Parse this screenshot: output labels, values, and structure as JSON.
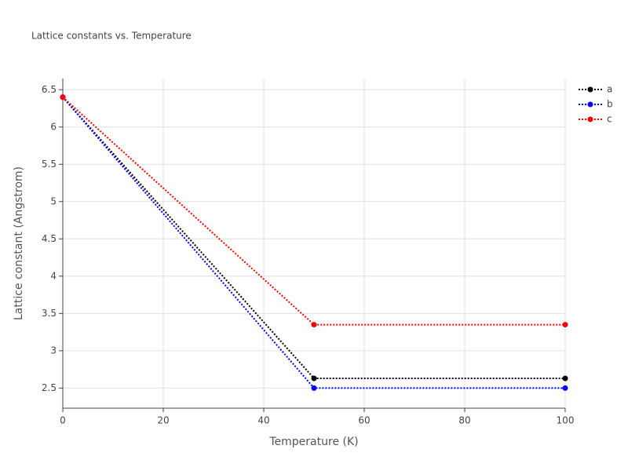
{
  "chart_data": {
    "type": "line",
    "title": "Lattice constants vs. Temperature",
    "x_label": "Temperature (K)",
    "y_label": "Lattice constant (Angstrom)",
    "x": [
      0,
      50,
      100
    ],
    "series": [
      {
        "name": "a",
        "color": "#000000",
        "values": [
          6.4,
          2.63,
          2.63
        ]
      },
      {
        "name": "b",
        "color": "#0000ff",
        "values": [
          6.4,
          2.5,
          2.5
        ]
      },
      {
        "name": "c",
        "color": "#ff0000",
        "values": [
          6.4,
          3.35,
          3.35
        ]
      }
    ],
    "xlim": [
      0,
      100
    ],
    "xticks": [
      0,
      20,
      40,
      60,
      80,
      100
    ],
    "ylim": [
      2.23,
      6.65
    ],
    "yticks": [
      2.5,
      3,
      3.5,
      4,
      4.5,
      5,
      5.5,
      6,
      6.5
    ],
    "grid": true,
    "legend": "top-right",
    "line_style": "dotted"
  }
}
